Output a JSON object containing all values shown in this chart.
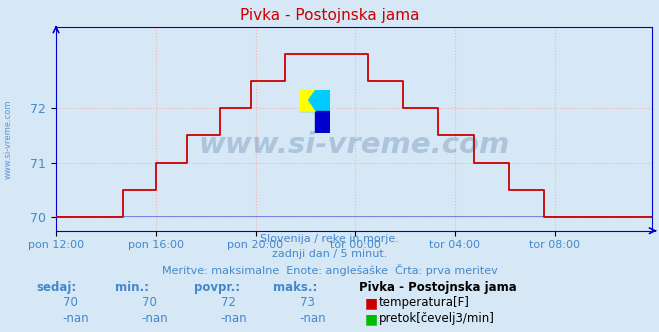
{
  "title": "Pivka - Postojnska jama",
  "bg_color": "#d6e8f5",
  "plot_bg_color": "#d6e8f5",
  "line_color": "#cc0000",
  "line_color2": "#0000cc",
  "grid_color": "#ffaaaa",
  "axis_color": "#0000cc",
  "text_color": "#4488cc",
  "ylim": [
    69.75,
    73.5
  ],
  "yticks": [
    70,
    71,
    72
  ],
  "xlabel_ticks": [
    "pon 12:00",
    "pon 16:00",
    "pon 20:00",
    "tor 00:00",
    "tor 04:00",
    "tor 08:00"
  ],
  "xtick_positions": [
    0,
    48,
    96,
    144,
    192,
    240
  ],
  "subtitle1": "Slovenija / reke in morje.",
  "subtitle2": "zadnji dan / 5 minut.",
  "subtitle3": "Meritve: maksimalne  Enote: anglešaške  Črta: prva meritev",
  "legend_title": "Pivka - Postojnska jama",
  "legend_items": [
    "temperatura[F]",
    "pretok[čevelj3/min]"
  ],
  "legend_colors": [
    "#cc0000",
    "#00bb00"
  ],
  "stats_headers": [
    "sedaj:",
    "min.:",
    "povpr.:",
    "maks.:"
  ],
  "stats_temp": [
    "70",
    "70",
    "72",
    "73"
  ],
  "stats_flow": [
    "-nan",
    "-nan",
    "-nan",
    "-nan"
  ],
  "watermark": "www.si-vreme.com",
  "watermark_color": "#1a4a7a",
  "watermark_alpha": 0.22,
  "ylabel_text": "www.si-vreme.com",
  "n_points": 288,
  "logo_yellow": "#ffff00",
  "logo_cyan": "#00ccff",
  "logo_blue": "#0000cc"
}
